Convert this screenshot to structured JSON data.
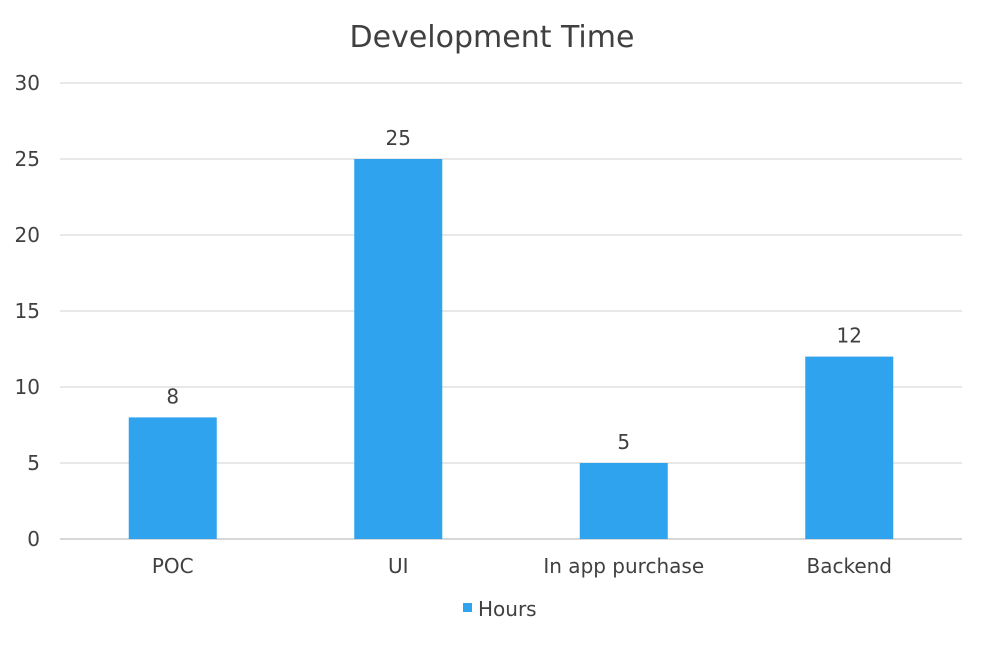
{
  "chart_data": {
    "type": "bar",
    "title": "Development Time",
    "categories": [
      "POC",
      "UI",
      "In app purchase",
      "Backend"
    ],
    "series": [
      {
        "name": "Hours",
        "values": [
          8,
          25,
          5,
          12
        ],
        "color": "#2fa3ee"
      }
    ],
    "xlabel": "",
    "ylabel": "",
    "ylim": [
      0,
      30
    ],
    "yticks": [
      0,
      5,
      10,
      15,
      20,
      25,
      30
    ],
    "data_labels": true,
    "grid": true,
    "legend": "bottom",
    "colors": {
      "title": "#404040",
      "text": "#404040",
      "grid": "#d9d9d9",
      "axis": "#bfbfbf"
    }
  }
}
